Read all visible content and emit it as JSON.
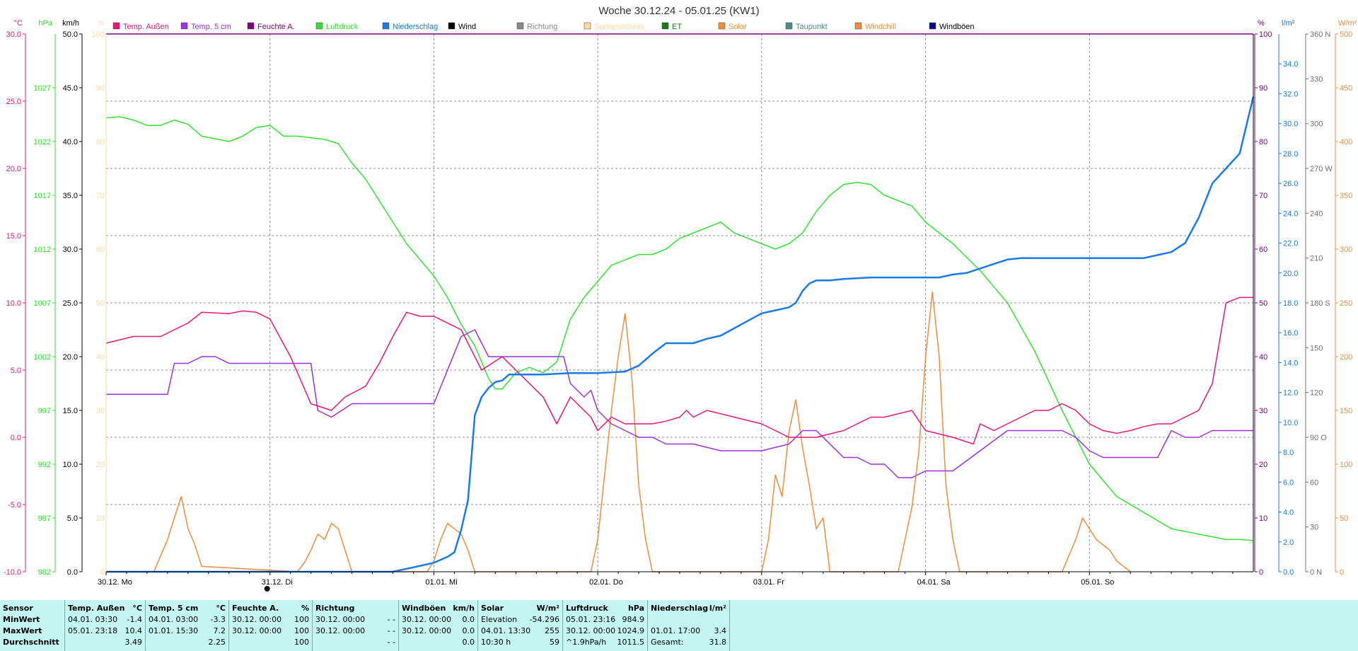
{
  "chart_data": {
    "type": "line",
    "title": "Woche 30.12.24 - 05.01.25 (KW1)",
    "x_day_labels": [
      "30.12. Mo",
      "31.12. Di",
      "01.01. Mi",
      "02.01. Do",
      "03.01. Fr",
      "04.01. Sa",
      "05.01. So"
    ],
    "x_range_hours": [
      0,
      168
    ],
    "legend": {
      "placement": "top",
      "entries": [
        {
          "name": "Temp. Außen",
          "color": "#e8157a"
        },
        {
          "name": "Temp. 5 cm",
          "color": "#9b30e0"
        },
        {
          "name": "Feuchte A.",
          "color": "#800080"
        },
        {
          "name": "Luftdruck",
          "color": "#33e033"
        },
        {
          "name": "Niederschlag",
          "color": "#1a7ae6"
        },
        {
          "name": "Wind",
          "color": "#000000"
        },
        {
          "name": "Richtung",
          "color": "#8a8a8a"
        },
        {
          "name": "Sonnenschein",
          "color": "#ffd9a0"
        },
        {
          "name": "ET",
          "color": "#1a7a1a"
        },
        {
          "name": "Solar",
          "color": "#f28c3c"
        },
        {
          "name": "Taupunkt",
          "color": "#4a8a8a"
        },
        {
          "name": "Windchill",
          "color": "#f28c3c"
        },
        {
          "name": "Windböen",
          "color": "#0a0a8a"
        }
      ]
    },
    "axes": {
      "temp": {
        "unit": "°C",
        "range": [
          -10,
          30
        ],
        "ticks": [
          "30.0",
          "25.0",
          "20.0",
          "15.0",
          "10.0",
          "5.0",
          "0.0",
          "-5.0",
          "-10.0"
        ],
        "color": "#e8157a"
      },
      "pressure": {
        "unit": "hPa",
        "range": [
          982,
          1032
        ],
        "ticks": [
          "1027",
          "1022",
          "1017",
          "1012",
          "1007",
          "1002",
          "997",
          "992",
          "987",
          "982"
        ],
        "color": "#33e033"
      },
      "wind": {
        "unit": "km/h",
        "range": [
          0,
          50
        ],
        "ticks": [
          "50.0",
          "45.0",
          "40.0",
          "35.0",
          "30.0",
          "25.0",
          "20.0",
          "15.0",
          "10.0",
          "5.0",
          "0.0"
        ],
        "color": "#000000"
      },
      "sunshine": {
        "unit": "h",
        "range": [
          0,
          100
        ],
        "ticks": [
          "100",
          "90",
          "80",
          "70",
          "60",
          "50",
          "40",
          "30",
          "20",
          "10",
          "0"
        ],
        "color": "#ffd9a0"
      },
      "humidity": {
        "unit": "%",
        "range": [
          0,
          100
        ],
        "ticks": [
          "100",
          "90",
          "80",
          "70",
          "60",
          "50",
          "40",
          "30",
          "20",
          "10",
          "0"
        ],
        "color": "#800080"
      },
      "precip": {
        "unit": "l/m²",
        "range": [
          0,
          36
        ],
        "ticks": [
          "34.0",
          "32.0",
          "30.0",
          "28.0",
          "26.0",
          "24.0",
          "22.0",
          "20.0",
          "18.0",
          "16.0",
          "14.0",
          "12.0",
          "10.0",
          "8.0",
          "6.0",
          "4.0",
          "2.0",
          "0.0"
        ],
        "color": "#1a7ae6"
      },
      "direction": {
        "unit": "",
        "range": [
          0,
          360
        ],
        "ticks": [
          "360 N",
          "330",
          "300",
          "270 W",
          "240",
          "210",
          "180 S",
          "150",
          "120",
          "90 O",
          "60",
          "30",
          "0 N"
        ],
        "color": "#707070"
      },
      "solar": {
        "unit": "W/m²",
        "range": [
          0,
          500
        ],
        "ticks": [
          "500",
          "450",
          "400",
          "350",
          "300",
          "250",
          "200",
          "150",
          "100",
          "50",
          "0"
        ],
        "color": "#f28c3c"
      }
    },
    "grid": true,
    "series": [
      {
        "name": "Temp. Außen",
        "axis": "temp",
        "color": "#e8157a",
        "x": [
          0,
          4,
          8,
          12,
          14,
          18,
          20,
          22,
          24,
          27,
          30,
          33,
          35,
          38,
          40,
          42,
          44,
          46,
          48,
          52,
          55,
          58,
          60,
          62,
          64,
          65,
          66,
          68,
          71,
          72,
          74,
          76,
          78,
          80,
          82,
          84,
          85,
          86,
          88,
          92,
          96,
          100,
          104,
          108,
          112,
          114,
          118,
          120,
          124,
          127,
          128,
          130,
          132,
          134,
          136,
          138,
          140,
          142,
          144,
          146,
          148,
          150,
          152,
          154,
          156,
          158,
          160,
          162,
          164,
          166,
          168
        ],
        "y": [
          7.0,
          7.5,
          7.5,
          8.5,
          9.3,
          9.2,
          9.4,
          9.3,
          8.8,
          6.0,
          2.5,
          2.0,
          3.0,
          3.8,
          5.5,
          7.5,
          9.3,
          9.0,
          9.0,
          8.0,
          5.0,
          6.0,
          5.0,
          4.0,
          3.0,
          2.0,
          1.0,
          3.0,
          1.5,
          0.5,
          1.5,
          1.0,
          1.0,
          1.0,
          1.2,
          1.5,
          2.0,
          1.5,
          2.0,
          1.5,
          1.0,
          0.0,
          0.0,
          0.5,
          1.5,
          1.5,
          2.0,
          0.5,
          0.0,
          -0.5,
          1.0,
          0.5,
          1.0,
          1.5,
          2.0,
          2.0,
          2.5,
          2.0,
          1.0,
          0.5,
          0.3,
          0.5,
          0.8,
          1.0,
          1.0,
          1.5,
          2.0,
          4.0,
          10.0,
          10.4,
          10.4
        ]
      },
      {
        "name": "Temp. 5 cm",
        "axis": "temp",
        "color": "#9b30e0",
        "x": [
          0,
          9,
          10,
          12,
          14,
          16,
          18,
          24,
          30,
          31,
          33,
          36,
          42,
          48,
          52,
          54,
          56,
          60,
          64,
          67,
          68,
          70,
          71,
          72,
          74,
          76,
          78,
          80,
          82,
          84,
          86,
          90,
          96,
          100,
          102,
          104,
          106,
          108,
          110,
          112,
          114,
          116,
          118,
          120,
          124,
          128,
          132,
          136,
          138,
          140,
          142,
          144,
          146,
          148,
          150,
          152,
          154,
          156,
          158,
          160,
          162,
          164,
          166,
          168
        ],
        "y": [
          3.2,
          3.2,
          5.5,
          5.5,
          6.0,
          6.0,
          5.5,
          5.5,
          5.5,
          2.0,
          1.5,
          2.5,
          2.5,
          2.5,
          7.5,
          8.0,
          6.0,
          6.0,
          6.0,
          6.0,
          4.0,
          3.0,
          3.5,
          2.0,
          1.0,
          0.5,
          0.0,
          0.0,
          -0.5,
          -0.5,
          -0.5,
          -1.0,
          -1.0,
          -0.5,
          0.5,
          0.5,
          -0.5,
          -1.5,
          -1.5,
          -2.0,
          -2.0,
          -3.0,
          -3.0,
          -2.5,
          -2.5,
          -1.0,
          0.5,
          0.5,
          0.5,
          0.5,
          0.0,
          -1.0,
          -1.5,
          -1.5,
          -1.5,
          -1.5,
          -1.5,
          0.5,
          0.0,
          0.0,
          0.5,
          0.5,
          0.5,
          0.5
        ]
      },
      {
        "name": "Luftdruck",
        "axis": "pressure",
        "color": "#33e033",
        "x": [
          0,
          2,
          4,
          6,
          8,
          10,
          12,
          14,
          18,
          20,
          22,
          24,
          26,
          28,
          32,
          34,
          36,
          38,
          40,
          42,
          44,
          46,
          48,
          50,
          52,
          54,
          56,
          57,
          58,
          60,
          62,
          64,
          66,
          68,
          70,
          72,
          74,
          76,
          78,
          80,
          82,
          84,
          86,
          88,
          90,
          92,
          94,
          96,
          98,
          100,
          102,
          104,
          106,
          108,
          110,
          112,
          114,
          116,
          118,
          120,
          124,
          128,
          132,
          136,
          140,
          144,
          148,
          152,
          156,
          160,
          164,
          166,
          168
        ],
        "y": [
          1024.2,
          1024.3,
          1024.0,
          1023.5,
          1023.5,
          1024.0,
          1023.6,
          1022.5,
          1022.0,
          1022.5,
          1023.3,
          1023.5,
          1022.5,
          1022.5,
          1022.2,
          1021.8,
          1020.0,
          1018.5,
          1016.5,
          1014.5,
          1012.5,
          1011.0,
          1009.5,
          1007.5,
          1005.0,
          1003.0,
          1000.0,
          999.0,
          999.0,
          1000.5,
          1001.0,
          1000.5,
          1001.5,
          1005.5,
          1007.5,
          1009.0,
          1010.5,
          1011.0,
          1011.5,
          1011.5,
          1012.0,
          1013.0,
          1013.5,
          1014.0,
          1014.5,
          1013.5,
          1013.0,
          1012.5,
          1012.0,
          1012.5,
          1013.5,
          1015.5,
          1017.0,
          1018.0,
          1018.2,
          1018.0,
          1017.0,
          1016.5,
          1016.0,
          1014.5,
          1012.5,
          1010.0,
          1007.0,
          1002.5,
          997.0,
          992.0,
          989.0,
          987.5,
          986.0,
          985.5,
          985.0,
          985.0,
          984.9
        ]
      },
      {
        "name": "Niederschlag",
        "axis": "precip",
        "color": "#1a7ae6",
        "x": [
          0,
          42,
          44,
          46,
          48,
          50,
          51,
          52,
          53,
          54,
          55,
          56,
          57,
          58,
          59,
          60,
          62,
          64,
          68,
          72,
          76,
          78,
          80,
          82,
          86,
          88,
          90,
          92,
          94,
          96,
          98,
          100,
          101,
          102,
          103,
          104,
          106,
          108,
          112,
          116,
          118,
          120,
          122,
          124,
          126,
          128,
          130,
          132,
          134,
          138,
          140,
          142,
          144,
          146,
          148,
          150,
          152,
          154,
          156,
          158,
          160,
          162,
          164,
          166,
          168
        ],
        "y": [
          0,
          0,
          0.2,
          0.4,
          0.6,
          1.0,
          1.3,
          2.8,
          4.8,
          10.5,
          11.7,
          12.3,
          12.7,
          12.8,
          13.2,
          13.2,
          13.2,
          13.2,
          13.3,
          13.3,
          13.4,
          13.8,
          14.6,
          15.3,
          15.3,
          15.6,
          15.8,
          16.3,
          16.8,
          17.3,
          17.5,
          17.7,
          18.0,
          18.8,
          19.3,
          19.5,
          19.5,
          19.6,
          19.7,
          19.7,
          19.7,
          19.7,
          19.7,
          19.9,
          20.0,
          20.3,
          20.6,
          20.9,
          21.0,
          21.0,
          21.0,
          21.0,
          21.0,
          21.0,
          21.0,
          21.0,
          21.0,
          21.2,
          21.4,
          22.0,
          23.7,
          26.0,
          27.0,
          28.0,
          31.8
        ]
      },
      {
        "name": "Solar",
        "axis": "solar",
        "color": "#f28c3c",
        "x": [
          0,
          7,
          8,
          9,
          10,
          11,
          12,
          13,
          14,
          28,
          29,
          30,
          31,
          32,
          33,
          34,
          35,
          36,
          47,
          48,
          49,
          50,
          51,
          52,
          53,
          54,
          71,
          72,
          73,
          74,
          75,
          76,
          77,
          78,
          79,
          80,
          96,
          97,
          98,
          99,
          100,
          101,
          102,
          103,
          104,
          105,
          106,
          116,
          117,
          118,
          119,
          120,
          121,
          122,
          123,
          124,
          125,
          126,
          140,
          141,
          142,
          143,
          144,
          145,
          146,
          147,
          148,
          149,
          150
        ],
        "y": [
          0,
          0,
          15,
          30,
          50,
          70,
          40,
          25,
          5,
          0,
          8,
          20,
          35,
          30,
          45,
          40,
          20,
          0,
          0,
          10,
          30,
          45,
          40,
          35,
          20,
          0,
          0,
          30,
          90,
          150,
          200,
          240,
          180,
          80,
          30,
          0,
          0,
          30,
          90,
          70,
          130,
          160,
          115,
          80,
          40,
          50,
          0,
          0,
          30,
          60,
          110,
          200,
          260,
          200,
          80,
          30,
          0,
          0,
          0,
          15,
          30,
          50,
          40,
          30,
          25,
          20,
          10,
          5,
          0
        ]
      }
    ]
  },
  "stats": {
    "sensor": {
      "header": "Sensor",
      "rows": [
        "MinWert",
        "MaxWert",
        "Durchschnitt"
      ]
    },
    "temp_aussen": {
      "header": "Temp. Außen",
      "unit": "°C",
      "rows": [
        [
          "04.01. 03:30",
          "-1.4"
        ],
        [
          "05.01. 23:18",
          "10.4"
        ],
        [
          "",
          "3.49"
        ]
      ]
    },
    "temp_5cm": {
      "header": "Temp. 5 cm",
      "unit": "°C",
      "rows": [
        [
          "04.01. 03:00",
          "-3.3"
        ],
        [
          "01.01. 15:30",
          "7.2"
        ],
        [
          "",
          "2.25"
        ]
      ]
    },
    "feuchte": {
      "header": "Feuchte A.",
      "unit": "%",
      "rows": [
        [
          "30.12. 00:00",
          "100"
        ],
        [
          "30.12. 00:00",
          "100"
        ],
        [
          "",
          "100"
        ]
      ]
    },
    "richtung": {
      "header": "Richtung",
      "rows": [
        [
          "30.12. 00:00",
          "- -"
        ],
        [
          "30.12. 00:00",
          "- -"
        ],
        [
          "",
          "- -"
        ]
      ]
    },
    "windboeen": {
      "header": "Windböen",
      "unit": "km/h",
      "rows": [
        [
          "30.12. 00:00",
          "0.0"
        ],
        [
          "30.12. 00:00",
          "0.0"
        ],
        [
          "",
          "0.0"
        ]
      ]
    },
    "solar": {
      "header": "Solar",
      "unit": "W/m²",
      "rows": [
        [
          "Elevation",
          "-54.296"
        ],
        [
          "04.01. 13:30",
          "255"
        ],
        [
          "10:30 h",
          "59"
        ]
      ]
    },
    "luftdruck": {
      "header": "Luftdruck",
      "unit": "hPa",
      "rows": [
        [
          "05.01. 23:16",
          "984.9"
        ],
        [
          "30.12. 00:00",
          "1024.9"
        ],
        [
          "^1.9hPa/h",
          "1011.5"
        ]
      ]
    },
    "niederschlag": {
      "header": "Niederschlag",
      "unit": "l/m²",
      "rows": [
        [
          "",
          ""
        ],
        [
          "01.01. 17:00",
          "3.4"
        ],
        [
          "Gesamt:",
          "31.8"
        ]
      ]
    }
  }
}
